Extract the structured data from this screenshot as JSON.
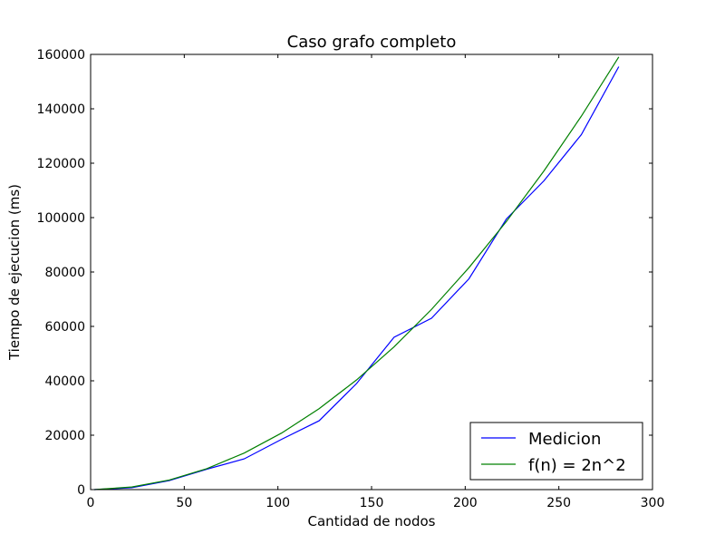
{
  "chart_data": {
    "type": "line",
    "title": "Caso grafo completo",
    "xlabel": "Cantidad de nodos",
    "ylabel": "Tiempo de ejecucion (ms)",
    "xlim": [
      0,
      300
    ],
    "ylim": [
      0,
      160000
    ],
    "xticks": [
      0,
      50,
      100,
      150,
      200,
      250,
      300
    ],
    "yticks": [
      0,
      20000,
      40000,
      60000,
      80000,
      100000,
      120000,
      140000,
      160000
    ],
    "grid": false,
    "legend_position": "bottom-right",
    "x": [
      2,
      22,
      42,
      62,
      82,
      102,
      122,
      142,
      162,
      182,
      202,
      222,
      242,
      262,
      282
    ],
    "series": [
      {
        "name": "Medicion",
        "color": "#0000ff",
        "values": [
          0,
          700,
          3300,
          7500,
          11300,
          18500,
          25300,
          39000,
          56000,
          63000,
          77500,
          99500,
          113500,
          130500,
          155500
        ]
      },
      {
        "name": "f(n) = 2n^2",
        "color": "#008000",
        "values": [
          8,
          968,
          3528,
          7688,
          13448,
          20808,
          29768,
          40328,
          52488,
          66248,
          81608,
          98568,
          117128,
          137288,
          159048
        ]
      }
    ]
  }
}
